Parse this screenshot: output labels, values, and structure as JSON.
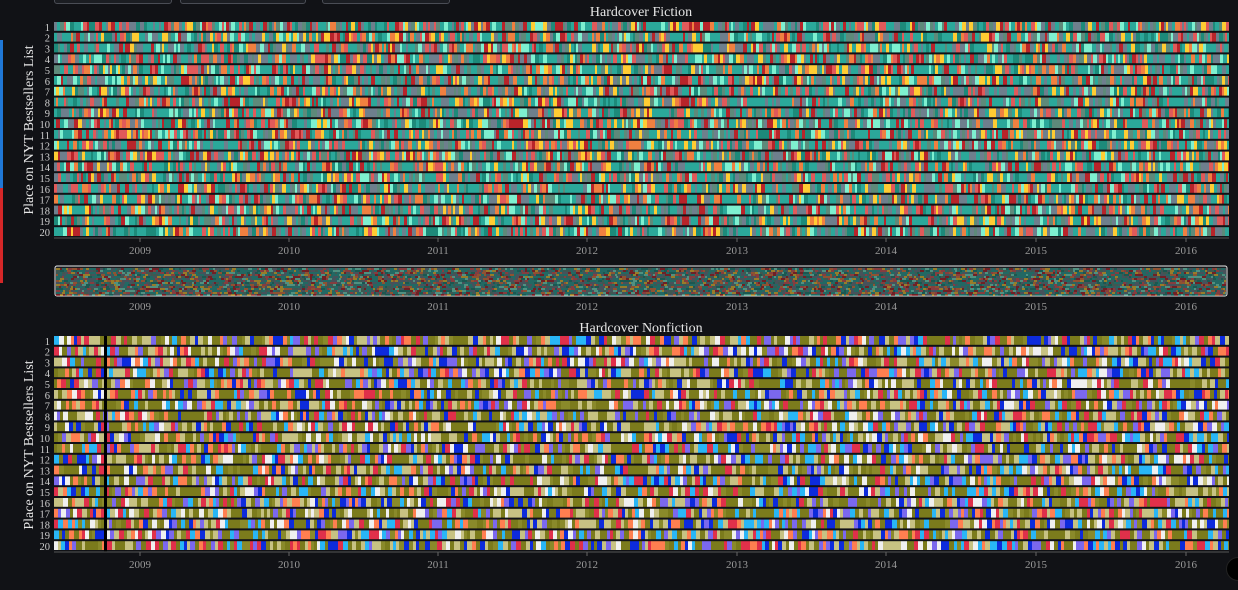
{
  "top_buttons": [
    {
      "name": "control-button-1"
    },
    {
      "name": "control-button-2"
    },
    {
      "name": "control-button-3"
    }
  ],
  "chart_data": [
    {
      "type": "heatmap",
      "title": "Hardcover Fiction",
      "ylabel": "Place on NYT Bestsellers List",
      "y_categories": [
        "1",
        "2",
        "3",
        "4",
        "5",
        "6",
        "7",
        "8",
        "9",
        "10",
        "11",
        "12",
        "13",
        "14",
        "15",
        "16",
        "17",
        "18",
        "19",
        "20"
      ],
      "x_ticks": [
        "2009",
        "2010",
        "2011",
        "2012",
        "2013",
        "2014",
        "2015",
        "2016"
      ],
      "x_range": [
        "2008-06",
        "2016-04"
      ],
      "palette": [
        "#2ba89a",
        "#6e7f8d",
        "#2ba89a",
        "#6e7f8d",
        "#1d8a7a",
        "#b8242a",
        "#f08040",
        "#ffcc33",
        "#5e8a7a",
        "#7ef0d0",
        "#e05a5a",
        "#2ba89a"
      ]
    },
    {
      "type": "heatmap",
      "title": "Hardcover Nonfiction",
      "ylabel": "Place on NYT Bestsellers List",
      "y_categories": [
        "1",
        "2",
        "3",
        "4",
        "5",
        "6",
        "7",
        "8",
        "9",
        "10",
        "11",
        "12",
        "13",
        "14",
        "15",
        "16",
        "17",
        "18",
        "19",
        "20"
      ],
      "x_ticks": [
        "2009",
        "2010",
        "2011",
        "2012",
        "2013",
        "2014",
        "2015",
        "2016"
      ],
      "x_range": [
        "2008-06",
        "2016-04"
      ],
      "palette": [
        "#7b7b1c",
        "#c7c283",
        "#7b7b1c",
        "#c7c283",
        "#8a8a2a",
        "#29b6f6",
        "#7b68ee",
        "#f0f0f0",
        "#0d2bdc",
        "#e0304a",
        "#ff7f50",
        "#7b7b1c"
      ]
    }
  ],
  "range_slider": {
    "x_ticks": [
      "2009",
      "2010",
      "2011",
      "2012",
      "2013",
      "2014",
      "2015",
      "2016"
    ]
  }
}
